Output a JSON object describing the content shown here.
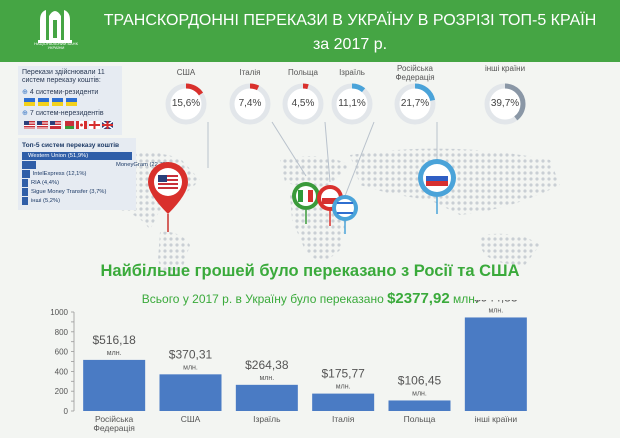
{
  "header": {
    "title_line1": "ТРАНСКОРДОННІ ПЕРЕКАЗИ  В УКРАЇНУ В РОЗРІЗІ ТОП-5 КРАЇН",
    "title_line2": "за 2017 р.",
    "logo_text": "НАЦІОНАЛЬНИЙ БАНК УКРАЇНИ"
  },
  "systems": {
    "heading": "Перекази здійснювали 11 систем переказу коштів:",
    "residents": "4 системи-резиденти",
    "nonresidents": "7 систем-нерезидентів",
    "top5_title": "Топ-5 систем переказу коштів",
    "items": [
      {
        "label": "Western Union (51,9%)",
        "share": 51.9
      },
      {
        "label": "MoneyGram (22,7%)",
        "share": 22.7
      },
      {
        "label": "IntelExpress (12,1%)",
        "share": 12.1
      },
      {
        "label": "RIA (4,4%)",
        "share": 4.4
      },
      {
        "label": "Sigue Money Transfer (3,7%)",
        "share": 3.7
      },
      {
        "label": "інші (5,2%)",
        "share": 5.2
      }
    ]
  },
  "country_shares": [
    {
      "country": "США",
      "pct_label": "15,6%",
      "share": 15.6,
      "color": "#d9302c"
    },
    {
      "country": "Італія",
      "pct_label": "7,4%",
      "share": 7.4,
      "color": "#d9302c"
    },
    {
      "country": "Польща",
      "pct_label": "4,5%",
      "share": 4.5,
      "color": "#d9302c"
    },
    {
      "country": "Ізраїль",
      "pct_label": "11,1%",
      "share": 11.1,
      "color": "#4aa3d9"
    },
    {
      "country": "Російська Федерація",
      "pct_label": "21,7%",
      "share": 21.7,
      "color": "#4aa3d9"
    },
    {
      "country": "інші країни",
      "pct_label": "39,7%",
      "share": 39.7,
      "color": "#8a97a6"
    }
  ],
  "headline": "Найбільше грошей було переказано з Росії та США",
  "total": {
    "prefix": "Всього у 2017 р. в Україну було переказано",
    "amount": "$2377,92",
    "suffix": "млн."
  },
  "chart_data": {
    "type": "bar",
    "categories": [
      "Російська Федерація",
      "США",
      "Ізраїль",
      "Італія",
      "Польща",
      "інші країни"
    ],
    "values": [
      516.18,
      370.31,
      264.38,
      175.77,
      106.45,
      944.83
    ],
    "value_labels": [
      "$516,18",
      "$370,31",
      "$264,38",
      "$175,77",
      "$106,45",
      "$944,83"
    ],
    "unit_label": "млн.",
    "ylim": [
      0,
      1000
    ],
    "yticks": [
      0,
      100,
      200,
      300,
      400,
      500,
      600,
      700,
      800,
      900,
      1000
    ],
    "bar_color": "#4a7bc4"
  }
}
